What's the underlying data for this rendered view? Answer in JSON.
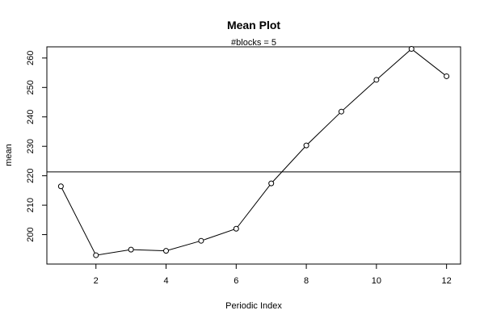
{
  "chart_data": {
    "type": "line",
    "title": "Mean Plot",
    "subtitle": "#blocks =  5",
    "xlabel": "Periodic Index",
    "ylabel": "mean",
    "x": [
      1,
      2,
      3,
      4,
      5,
      6,
      7,
      8,
      9,
      10,
      11,
      12
    ],
    "y": [
      216.4,
      193.0,
      194.9,
      194.5,
      197.9,
      202.0,
      217.4,
      230.3,
      241.8,
      252.6,
      263.1,
      253.8
    ],
    "reference_line": 221.3,
    "xlim": [
      0.6,
      12.4
    ],
    "ylim": [
      190,
      263.8
    ],
    "x_ticks": [
      2,
      4,
      6,
      8,
      10,
      12
    ],
    "y_ticks": [
      200,
      210,
      220,
      230,
      240,
      250,
      260
    ],
    "markers": "open-circle",
    "grid": false
  }
}
